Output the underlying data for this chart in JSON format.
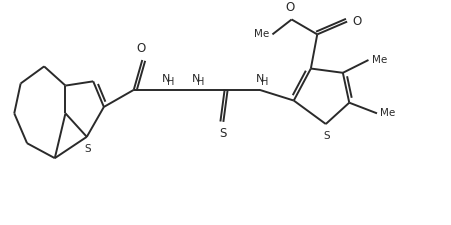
{
  "line_color": "#2a2a2a",
  "bg_color": "#ffffff",
  "lw": 1.4,
  "figsize": [
    4.51,
    2.25
  ],
  "dpi": 100,
  "xlim": [
    0,
    10
  ],
  "ylim": [
    0,
    5
  ]
}
